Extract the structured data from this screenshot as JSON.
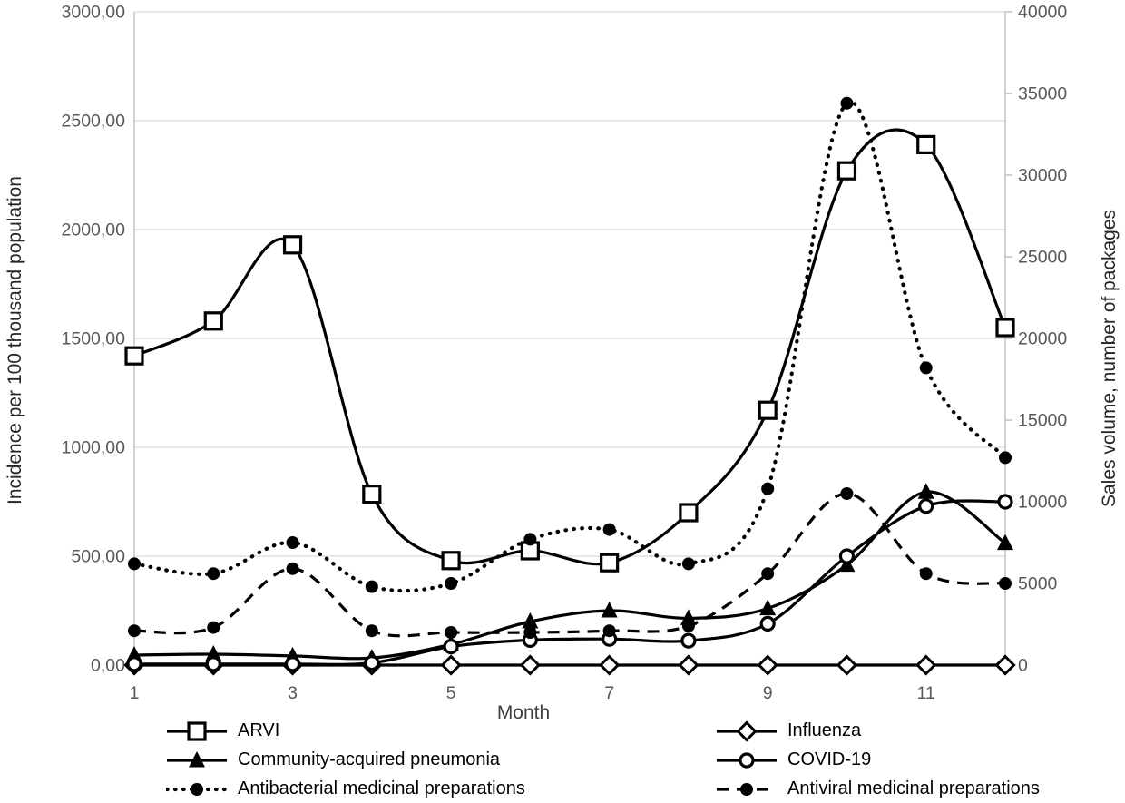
{
  "chart_data": {
    "type": "line",
    "title": "",
    "xlabel": "Month",
    "x": [
      1,
      2,
      3,
      4,
      5,
      6,
      7,
      8,
      9,
      10,
      11,
      12
    ],
    "x_ticks": [
      1,
      3,
      5,
      7,
      9,
      11
    ],
    "x_tick_labels": [
      "1",
      "3",
      "5",
      "7",
      "9",
      "11"
    ],
    "grid": "horizontal",
    "legend_position": "bottom",
    "colors": {
      "series": "#000000",
      "tick_label": "#595959",
      "gridline": "#d9d9d9",
      "axis_line": "#bfbfbf"
    },
    "y_left": {
      "label": "Incidence per 100 thousand population",
      "min": 0,
      "max": 3000,
      "ticks": [
        3000,
        2500,
        2000,
        1500,
        1000,
        500,
        0
      ],
      "tick_labels": [
        "3000,00",
        "2500,00",
        "2000,00",
        "1500,00",
        "1000,00",
        "500,00",
        "0,00"
      ]
    },
    "y_right": {
      "label": "Sales volume, number of packages",
      "min": 0,
      "max": 40000,
      "ticks": [
        40000,
        35000,
        30000,
        25000,
        20000,
        15000,
        10000,
        5000,
        0
      ],
      "tick_labels": [
        "40000",
        "35000",
        "30000",
        "25000",
        "20000",
        "15000",
        "10000",
        "5000",
        "0"
      ]
    },
    "series": [
      {
        "name": "ARVI",
        "axis": "left",
        "line": "solid",
        "marker": "square-open",
        "values": [
          1420,
          1580,
          1930,
          785,
          480,
          525,
          470,
          700,
          1170,
          2270,
          2390,
          1550
        ]
      },
      {
        "name": "Influenza",
        "axis": "left",
        "line": "solid",
        "marker": "diamond-open",
        "values": [
          0,
          0,
          0,
          0,
          0,
          0,
          0,
          0,
          0,
          0,
          0,
          0
        ]
      },
      {
        "name": "Community-acquired pneumonia",
        "axis": "left",
        "line": "solid",
        "marker": "triangle-filled",
        "values": [
          46,
          50,
          42,
          33,
          95,
          200,
          250,
          215,
          260,
          460,
          795,
          560
        ]
      },
      {
        "name": "COVID-19",
        "axis": "left",
        "line": "solid",
        "marker": "circle-open",
        "values": [
          5,
          5,
          5,
          10,
          85,
          115,
          120,
          112,
          190,
          500,
          730,
          750
        ]
      },
      {
        "name": "Antibacterial medicinal preparations",
        "axis": "right",
        "line": "dotted",
        "marker": "circle-filled",
        "values": [
          6200,
          5600,
          7500,
          4800,
          5000,
          7700,
          8300,
          6200,
          10800,
          34400,
          18200,
          12700
        ]
      },
      {
        "name": "Antiviral medicinal preparations",
        "axis": "right",
        "line": "dashed",
        "marker": "circle-filled",
        "values": [
          2100,
          2300,
          5900,
          2100,
          2000,
          2000,
          2100,
          2400,
          5600,
          10500,
          5600,
          5000
        ]
      }
    ]
  }
}
